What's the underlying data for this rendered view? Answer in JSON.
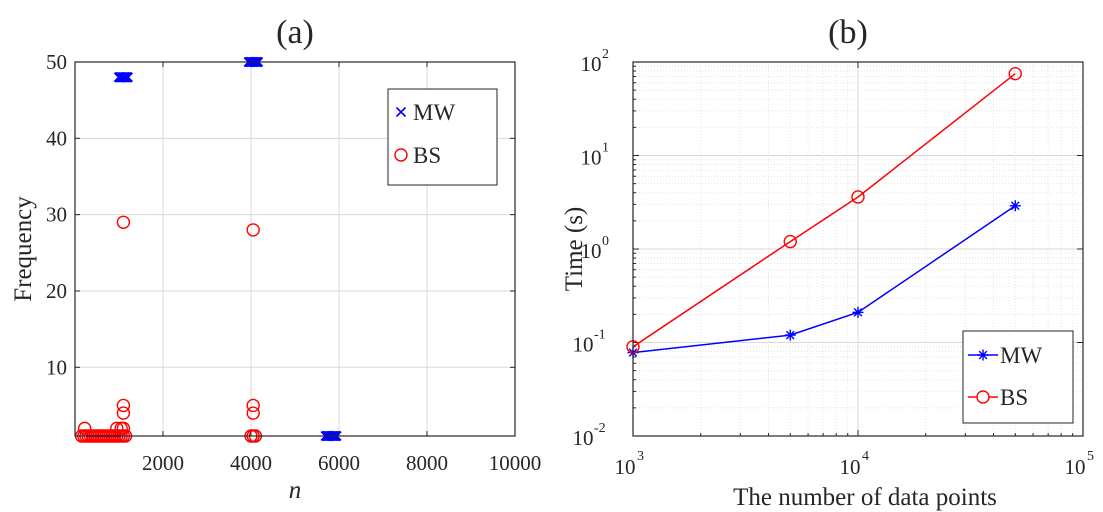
{
  "colors": {
    "mw": "#0000ff",
    "bs": "#ff0000",
    "grid": "#d9d9d9",
    "axis": "#262626"
  },
  "chart_data": [
    {
      "type": "scatter",
      "title": "(a)",
      "xlabel": "n",
      "ylabel": "Frequency",
      "xlim": [
        0,
        10000
      ],
      "ylim": [
        1,
        50
      ],
      "xticks": [
        2000,
        4000,
        6000,
        8000,
        10000
      ],
      "xtick_labels": [
        "2000",
        "4000",
        "6000",
        "8000",
        "10000"
      ],
      "yticks": [
        10,
        20,
        30,
        40,
        50
      ],
      "ytick_labels": [
        "10",
        "20",
        "30",
        "40",
        "50"
      ],
      "grid": true,
      "legend": "top-right",
      "series": [
        {
          "name": "MW",
          "marker": "x",
          "color": "#0000ff",
          "points": [
            [
              1000,
              48
            ],
            [
              1020,
              48
            ],
            [
              1040,
              48
            ],
            [
              1060,
              48
            ],
            [
              1080,
              48
            ],
            [
              1100,
              48
            ],
            [
              1120,
              48
            ],
            [
              1140,
              48
            ],
            [
              1160,
              48
            ],
            [
              1180,
              48
            ],
            [
              1200,
              48
            ],
            [
              3950,
              50
            ],
            [
              3980,
              50
            ],
            [
              4010,
              50
            ],
            [
              4040,
              50
            ],
            [
              4070,
              50
            ],
            [
              4100,
              50
            ],
            [
              4130,
              50
            ],
            [
              4160,
              50
            ],
            [
              5700,
              1
            ],
            [
              5730,
              1
            ],
            [
              5760,
              1
            ],
            [
              5790,
              1
            ],
            [
              5820,
              1
            ],
            [
              5850,
              1
            ],
            [
              5880,
              1
            ],
            [
              5910,
              1
            ],
            [
              5940,
              1
            ]
          ]
        },
        {
          "name": "BS",
          "marker": "o",
          "color": "#ff0000",
          "points": [
            [
              150,
              1
            ],
            [
              200,
              1
            ],
            [
              250,
              1
            ],
            [
              300,
              1
            ],
            [
              350,
              1
            ],
            [
              400,
              1
            ],
            [
              450,
              1
            ],
            [
              500,
              1
            ],
            [
              550,
              1
            ],
            [
              600,
              1
            ],
            [
              650,
              1
            ],
            [
              700,
              1
            ],
            [
              750,
              1
            ],
            [
              800,
              1
            ],
            [
              850,
              1
            ],
            [
              900,
              1
            ],
            [
              950,
              1
            ],
            [
              1000,
              1
            ],
            [
              1050,
              1
            ],
            [
              1100,
              1
            ],
            [
              1150,
              1
            ],
            [
              220,
              2
            ],
            [
              950,
              2
            ],
            [
              1050,
              2
            ],
            [
              1100,
              2
            ],
            [
              1100,
              4
            ],
            [
              1100,
              5
            ],
            [
              1100,
              29
            ],
            [
              4000,
              1
            ],
            [
              4050,
              1
            ],
            [
              4100,
              1
            ],
            [
              4050,
              4
            ],
            [
              4050,
              5
            ],
            [
              4050,
              28
            ]
          ]
        }
      ]
    },
    {
      "type": "line",
      "title": "(b)",
      "xlabel": "The number of data points",
      "ylabel": "Time (s)",
      "xscale": "log",
      "yscale": "log",
      "xlim": [
        1000,
        100000
      ],
      "ylim": [
        0.01,
        100
      ],
      "xtick_base": "10",
      "xtick_exponents": [
        "3",
        "4",
        "5"
      ],
      "ytick_base": "10",
      "ytick_exponents": [
        "-2",
        "-1",
        "0",
        "1",
        "2"
      ],
      "grid": true,
      "legend": "bottom-right",
      "x": [
        1000,
        5000,
        10000,
        50000
      ],
      "series": [
        {
          "name": "MW",
          "marker": "*",
          "color": "#0000ff",
          "values": [
            0.078,
            0.12,
            0.21,
            2.9
          ]
        },
        {
          "name": "BS",
          "marker": "o",
          "color": "#ff0000",
          "values": [
            0.09,
            1.2,
            3.6,
            75
          ]
        }
      ]
    }
  ]
}
